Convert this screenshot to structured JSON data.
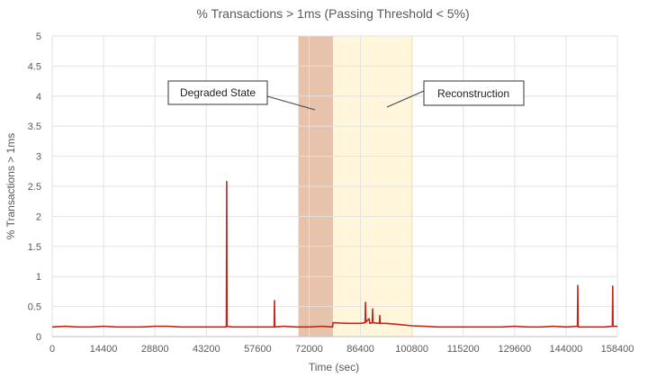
{
  "chart_data": {
    "type": "line",
    "title": "% Transactions > 1ms (Passing Threshold < 5%)",
    "xlabel": "Time (sec)",
    "ylabel": "% Transactions > 1ms",
    "xlim": [
      0,
      158400
    ],
    "ylim": [
      0,
      5
    ],
    "x_ticks": [
      0,
      14400,
      28800,
      43200,
      57600,
      72000,
      86400,
      100800,
      115200,
      129600,
      144000,
      158400
    ],
    "y_ticks": [
      0,
      0.5,
      1,
      1.5,
      2,
      2.5,
      3,
      3.5,
      4,
      4.5,
      5
    ],
    "grid": true,
    "legend": "none",
    "series_color": "#c0281e",
    "regions": [
      {
        "label": "Degraded State",
        "x_start": 69000,
        "x_end": 78700,
        "color": "#e8c3ab"
      },
      {
        "label": "Reconstruction",
        "x_start": 78700,
        "x_end": 101100,
        "color": "#fff6dc"
      }
    ],
    "series": [
      {
        "points": [
          [
            0,
            0.16
          ],
          [
            3600,
            0.17
          ],
          [
            7200,
            0.16
          ],
          [
            10800,
            0.16
          ],
          [
            14400,
            0.17
          ],
          [
            18000,
            0.16
          ],
          [
            21600,
            0.16
          ],
          [
            25200,
            0.16
          ],
          [
            28800,
            0.17
          ],
          [
            32400,
            0.17
          ],
          [
            36000,
            0.16
          ],
          [
            39600,
            0.16
          ],
          [
            43200,
            0.16
          ],
          [
            46800,
            0.16
          ],
          [
            48800,
            0.16
          ],
          [
            48900,
            2.58
          ],
          [
            49000,
            0.17
          ],
          [
            50400,
            0.16
          ],
          [
            54000,
            0.16
          ],
          [
            57600,
            0.16
          ],
          [
            61200,
            0.16
          ],
          [
            62200,
            0.16
          ],
          [
            62300,
            0.6
          ],
          [
            62400,
            0.16
          ],
          [
            64800,
            0.17
          ],
          [
            68400,
            0.16
          ],
          [
            72000,
            0.16
          ],
          [
            75600,
            0.17
          ],
          [
            78600,
            0.16
          ],
          [
            78700,
            0.23
          ],
          [
            82800,
            0.22
          ],
          [
            86400,
            0.22
          ],
          [
            87700,
            0.23
          ],
          [
            87800,
            0.57
          ],
          [
            87900,
            0.24
          ],
          [
            88800,
            0.3
          ],
          [
            89000,
            0.22
          ],
          [
            89700,
            0.23
          ],
          [
            89800,
            0.46
          ],
          [
            89900,
            0.23
          ],
          [
            91700,
            0.22
          ],
          [
            91800,
            0.35
          ],
          [
            91900,
            0.22
          ],
          [
            93600,
            0.22
          ],
          [
            97200,
            0.2
          ],
          [
            100800,
            0.18
          ],
          [
            104400,
            0.17
          ],
          [
            108000,
            0.16
          ],
          [
            111600,
            0.16
          ],
          [
            115200,
            0.16
          ],
          [
            118800,
            0.16
          ],
          [
            122400,
            0.16
          ],
          [
            126000,
            0.16
          ],
          [
            129600,
            0.17
          ],
          [
            133200,
            0.16
          ],
          [
            136800,
            0.16
          ],
          [
            140400,
            0.17
          ],
          [
            144000,
            0.16
          ],
          [
            147200,
            0.17
          ],
          [
            147300,
            0.85
          ],
          [
            147400,
            0.16
          ],
          [
            151200,
            0.16
          ],
          [
            154800,
            0.16
          ],
          [
            157000,
            0.17
          ],
          [
            157100,
            0.84
          ],
          [
            157200,
            0.17
          ],
          [
            158400,
            0.17
          ]
        ]
      }
    ]
  }
}
